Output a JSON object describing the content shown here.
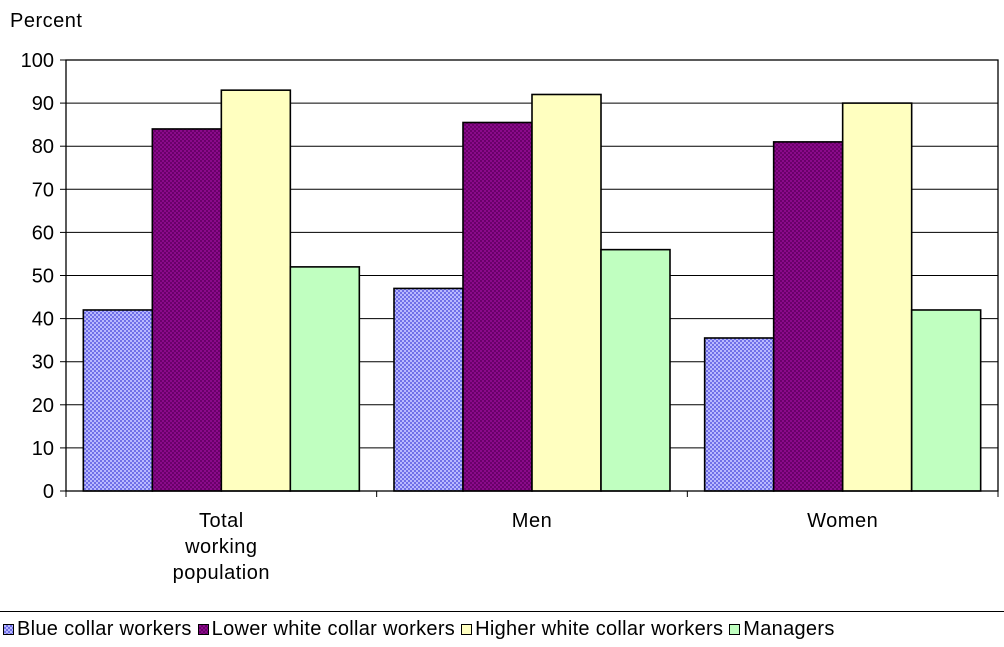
{
  "chart_data": {
    "type": "bar",
    "ylabel": "Percent",
    "xlabel": "",
    "ylim": [
      0,
      100
    ],
    "yticks": [
      0,
      10,
      20,
      30,
      40,
      50,
      60,
      70,
      80,
      90,
      100
    ],
    "grid": true,
    "legend_position": "bottom",
    "categories": [
      [
        "Total",
        "working",
        "population"
      ],
      [
        "Men"
      ],
      [
        "Women"
      ]
    ],
    "series": [
      {
        "name": "Blue collar workers",
        "values": [
          42,
          47,
          35.5
        ],
        "color": "#9a9aff",
        "pattern": "checker"
      },
      {
        "name": "Lower white collar workers",
        "values": [
          84,
          85.5,
          81
        ],
        "color": "#800080",
        "pattern": "checker"
      },
      {
        "name": "Higher white collar workers",
        "values": [
          93,
          92,
          90
        ],
        "color": "#ffffc0",
        "pattern": "solid"
      },
      {
        "name": "Managers",
        "values": [
          52,
          56,
          42
        ],
        "color": "#c0ffc0",
        "pattern": "solid"
      }
    ]
  }
}
